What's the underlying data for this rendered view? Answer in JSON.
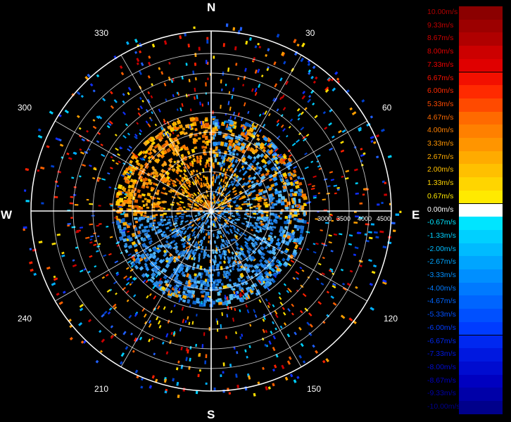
{
  "cardinals": {
    "north": "N",
    "east": "E",
    "south": "S",
    "west": "W"
  },
  "bearings": {
    "b30": "30",
    "b60": "60",
    "b120": "120",
    "b150": "150",
    "b210": "210",
    "b240": "240",
    "b300": "300",
    "b330": "330"
  },
  "range_labels": [
    "3000",
    "3500",
    "4000",
    "4500"
  ],
  "legend": [
    {
      "label": "10.00m/s",
      "color": "#8b0000",
      "text_color": "#b00000"
    },
    {
      "label": "9.33m/s",
      "color": "#9c0000",
      "text_color": "#c00000"
    },
    {
      "label": "8.67m/s",
      "color": "#b00000",
      "text_color": "#d00000"
    },
    {
      "label": "8.00m/s",
      "color": "#cc0000",
      "text_color": "#e00000"
    },
    {
      "label": "7.33m/s",
      "color": "#e00000",
      "text_color": "#f00000"
    },
    {
      "label": "6.67m/s",
      "color": "#f21000",
      "text_color": "#ff1000"
    },
    {
      "label": "6.00m/s",
      "color": "#ff2a00",
      "text_color": "#ff2a00"
    },
    {
      "label": "5.33m/s",
      "color": "#ff4a00",
      "text_color": "#ff4a00"
    },
    {
      "label": "4.67m/s",
      "color": "#ff6a00",
      "text_color": "#ff6a00"
    },
    {
      "label": "4.00m/s",
      "color": "#ff8000",
      "text_color": "#ff8000"
    },
    {
      "label": "3.33m/s",
      "color": "#ff9500",
      "text_color": "#ff9500"
    },
    {
      "label": "2.67m/s",
      "color": "#ffab00",
      "text_color": "#ffab00"
    },
    {
      "label": "2.00m/s",
      "color": "#ffc000",
      "text_color": "#ffc000"
    },
    {
      "label": "1.33m/s",
      "color": "#ffd500",
      "text_color": "#ffd500"
    },
    {
      "label": "0.67m/s",
      "color": "#ffea00",
      "text_color": "#ffea00"
    },
    {
      "label": "0.00m/s",
      "color": "#ffffff",
      "text_color": "#ffffff"
    },
    {
      "label": "-0.67m/s",
      "color": "#00e5ff",
      "text_color": "#00e5ff"
    },
    {
      "label": "-1.33m/s",
      "color": "#00d0ff",
      "text_color": "#00d0ff"
    },
    {
      "label": "-2.00m/s",
      "color": "#00bbff",
      "text_color": "#00bbff"
    },
    {
      "label": "-2.67m/s",
      "color": "#00a5ff",
      "text_color": "#00a5ff"
    },
    {
      "label": "-3.33m/s",
      "color": "#008fff",
      "text_color": "#008fff"
    },
    {
      "label": "-4.00m/s",
      "color": "#007aff",
      "text_color": "#007aff"
    },
    {
      "label": "-4.67m/s",
      "color": "#0065ff",
      "text_color": "#0065ff"
    },
    {
      "label": "-5.33m/s",
      "color": "#0050ff",
      "text_color": "#0050ff"
    },
    {
      "label": "-6.00m/s",
      "color": "#003cff",
      "text_color": "#003cff"
    },
    {
      "label": "-6.67m/s",
      "color": "#0028f0",
      "text_color": "#0028f0"
    },
    {
      "label": "-7.33m/s",
      "color": "#0018e0",
      "text_color": "#0018e0"
    },
    {
      "label": "-8.00m/s",
      "color": "#000cd0",
      "text_color": "#000cd0"
    },
    {
      "label": "-8.67m/s",
      "color": "#0000c0",
      "text_color": "#0000c0"
    },
    {
      "label": "-9.33m/s",
      "color": "#0000a8",
      "text_color": "#0000a8"
    },
    {
      "label": "-10.00m/s",
      "color": "#00008b",
      "text_color": "#00008b"
    }
  ]
}
